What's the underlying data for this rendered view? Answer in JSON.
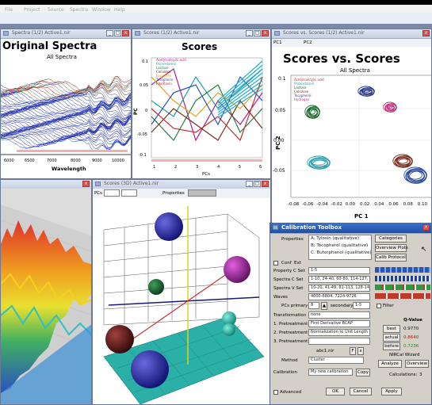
{
  "menubar": {
    "items": [
      "File",
      "Project",
      "Source",
      "Spectra",
      "Window",
      "Help"
    ]
  },
  "windows": {
    "spectra": {
      "title_bar": "Spectra (1/2) Active1.nir",
      "heading": "Original Spectra",
      "subtitle": "All Spectra",
      "xlabel": "Wavelength",
      "ticks": [
        "6000",
        "6500",
        "7000",
        "8000",
        "9000",
        "10000"
      ]
    },
    "scores": {
      "title_bar": "Scores (1/2) Active1.nir",
      "heading": "Scores",
      "ylabel": "PC",
      "xlabel": "PCs",
      "yticks": [
        "0.1",
        "0.05",
        "0",
        "-0.05",
        "-0.1"
      ],
      "xticks": [
        "1",
        "2",
        "3",
        "4",
        "5",
        "6"
      ],
      "legend": [
        "Acetylsalicylic acid",
        "Paracetamol",
        "Lactose",
        "Cellulose",
        "Ibuprofen",
        "Tocopherol",
        "Riboflavin"
      ]
    },
    "svs": {
      "title_bar": "Scores vs. Scores (1/2) Active1.nir",
      "heading": "Scores vs. Scores",
      "subtitle": "All Spectra",
      "pcx": "PC1",
      "pcy": "PC2",
      "xlabel": "PC 1",
      "ylabel": "PC 2",
      "yticks": [
        "0.1",
        "0.05",
        "0.00",
        "-0.05"
      ],
      "xticks": [
        "-0.08",
        "-0.06",
        "-0.04",
        "-0.02",
        "0.00",
        "0.02",
        "0.04",
        "0.06",
        "0.08",
        "0.10"
      ],
      "legend": [
        "Acetylsalicylic acid",
        "Paracetamol",
        "Lactose",
        "Cellulose",
        "Tocopherol",
        "Hydrogen"
      ]
    },
    "surface": {
      "title_bar": ""
    },
    "scores3d": {
      "title_bar": "Scores (3D) Active1.nir",
      "pcs_label": "PCs",
      "props_label": "Properties"
    }
  },
  "calibration": {
    "title": "Calibration Toolbox",
    "properties_label": "Properties",
    "properties": [
      "A: Tylosin (qualitative)",
      "B: Tocopherol (qualitative)",
      "C: Butorphanol (qualitative)"
    ],
    "buttons_right": [
      "Categories",
      "Overview Plots",
      "Calib Protocol"
    ],
    "tabs": [
      "Conf",
      "Ext",
      "Ortho"
    ],
    "rows": [
      {
        "label": "Property C Set",
        "value": "1-5"
      },
      {
        "label": "Spectra C Set",
        "value": "1-10, 24-40, 60-80, 114-127, 140-..."
      },
      {
        "label": "Spectra V Set",
        "value": "10-20, 41-49, 81-113, 128-140, 15..."
      },
      {
        "label": "Waves",
        "value": "4000-6804, 7224-9726"
      }
    ],
    "pcs_primary_label": "PCs primary",
    "pcs_primary": "8",
    "secondary_label": "secondary",
    "secondary": "1-5",
    "transformation_label": "Transformation",
    "transformation": "none",
    "pretreat": [
      {
        "label": "1. Pretreatment",
        "value": "First Derivative BCAP"
      },
      {
        "label": "2. Pretreatment",
        "value": "Normalization to Unit Length"
      },
      {
        "label": "3. Pretreatment",
        "value": ""
      }
    ],
    "method_label": "Method",
    "method": "Cluster",
    "file": "abc1.nir",
    "calibration_label": "Calibration",
    "calibration_value": "My new calibration",
    "copy_btn": "Copy",
    "qvalue_label": "Q-Value",
    "q_buttons": [
      "best",
      "actual",
      "before"
    ],
    "q_values": [
      "0.9770",
      "0.8640",
      "0.7236"
    ],
    "nircal_label": "NIRCal Wizard",
    "analyze_btn": "Analyze",
    "overview_btn": "Overview",
    "calc_label": "Calculations:",
    "calc_value": "3",
    "advanced_label": "Advanced",
    "ok": "OK",
    "cancel": "Cancel",
    "apply": "Apply",
    "filter_label": "Filter",
    "ret_label": "RE..."
  }
}
